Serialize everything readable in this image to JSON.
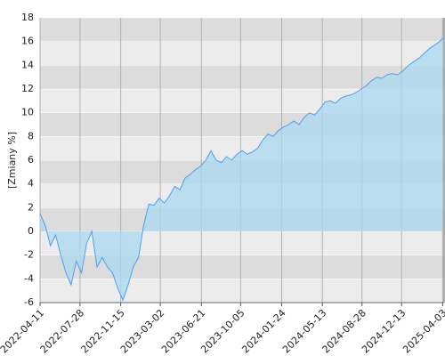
{
  "chart_data": {
    "type": "area",
    "y_label": "[Zmiany %]",
    "x": [
      "2022-04-11",
      "2022-04-25",
      "2022-05-09",
      "2022-05-23",
      "2022-06-06",
      "2022-06-20",
      "2022-07-04",
      "2022-07-18",
      "2022-08-01",
      "2022-08-15",
      "2022-08-29",
      "2022-09-12",
      "2022-09-26",
      "2022-10-10",
      "2022-10-24",
      "2022-11-07",
      "2022-11-21",
      "2022-12-05",
      "2022-12-19",
      "2023-01-02",
      "2023-01-16",
      "2023-01-30",
      "2023-02-13",
      "2023-02-27",
      "2023-03-13",
      "2023-03-27",
      "2023-04-10",
      "2023-04-24",
      "2023-05-08",
      "2023-05-22",
      "2023-06-05",
      "2023-06-19",
      "2023-07-03",
      "2023-07-17",
      "2023-07-31",
      "2023-08-14",
      "2023-08-28",
      "2023-09-11",
      "2023-09-25",
      "2023-10-09",
      "2023-10-23",
      "2023-11-06",
      "2023-11-20",
      "2023-12-04",
      "2023-12-18",
      "2024-01-01",
      "2024-01-15",
      "2024-01-29",
      "2024-02-12",
      "2024-02-26",
      "2024-03-11",
      "2024-03-25",
      "2024-04-08",
      "2024-04-22",
      "2024-05-06",
      "2024-05-20",
      "2024-06-03",
      "2024-06-17",
      "2024-07-01",
      "2024-07-15",
      "2024-07-29",
      "2024-08-12",
      "2024-08-26",
      "2024-09-09",
      "2024-09-23",
      "2024-10-07",
      "2024-10-21",
      "2024-11-04",
      "2024-11-18",
      "2024-12-02",
      "2024-12-16",
      "2025-01-01",
      "2025-01-15",
      "2025-01-29",
      "2025-02-12",
      "2025-02-26",
      "2025-03-12",
      "2025-03-26",
      "2025-04-03"
    ],
    "series": [
      {
        "color": "#4a9ff0",
        "fill": "#a9d9f0",
        "values": [
          1.5,
          0.5,
          -1.2,
          -0.3,
          -2,
          -3.5,
          -4.5,
          -2.5,
          -3.5,
          -1,
          0,
          -3,
          -2.2,
          -3,
          -3.5,
          -4.8,
          -5.8,
          -4.5,
          -3,
          -2.2,
          0.5,
          2.3,
          2.2,
          2.8,
          2.4,
          3,
          3.8,
          3.5,
          4.5,
          4.8,
          5.2,
          5.5,
          6,
          6.8,
          6,
          5.8,
          6.3,
          6,
          6.5,
          6.8,
          6.5,
          6.7,
          7,
          7.7,
          8.2,
          8,
          8.5,
          8.8,
          9,
          9.3,
          9,
          9.6,
          10,
          9.8,
          10.3,
          10.9,
          11,
          10.8,
          11.2,
          11.4,
          11.5,
          11.7,
          12,
          12.3,
          12.7,
          13,
          12.9,
          13.2,
          13.3,
          13.2,
          13.5,
          14,
          14.3,
          14.6,
          15,
          15.4,
          15.7,
          16,
          16.3
        ]
      }
    ],
    "xlim": [
      "2022-04-11",
      "2025-04-07"
    ],
    "xticks": [
      "2022-04-11",
      "2022-07-28",
      "2022-11-15",
      "2023-03-02",
      "2023-06-21",
      "2023-10-05",
      "2024-01-24",
      "2024-05-13",
      "2024-08-28",
      "2024-12-13",
      "2025-04-03"
    ],
    "ylim": [
      -6,
      18
    ],
    "yticks": [
      -6,
      -4,
      -2,
      0,
      2,
      4,
      6,
      8,
      10,
      12,
      14,
      16,
      18
    ],
    "grid": true
  }
}
